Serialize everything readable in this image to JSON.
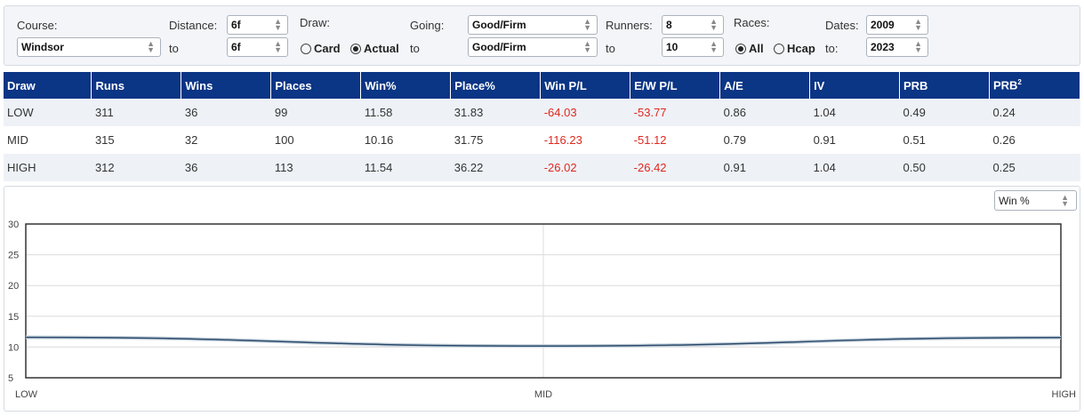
{
  "filters": {
    "course_label": "Course:",
    "course_value": "Windsor",
    "distance_label": "Distance:",
    "distance_from": "6f",
    "to_label": "to",
    "distance_to": "6f",
    "draw_label": "Draw:",
    "draw_card": "Card",
    "draw_actual": "Actual",
    "going_label": "Going:",
    "going_from": "Good/Firm",
    "going_to": "Good/Firm",
    "runners_label": "Runners:",
    "runners_from": "8",
    "runners_to": "10",
    "races_label": "Races:",
    "races_all": "All",
    "races_hcap": "Hcap",
    "dates_label": "Dates:",
    "dates_from": "2009",
    "dates_to_label": "to:",
    "dates_to": "2023"
  },
  "table": {
    "headers": [
      "Draw",
      "Runs",
      "Wins",
      "Places",
      "Win%",
      "Place%",
      "Win P/L",
      "E/W P/L",
      "A/E",
      "IV",
      "PRB",
      "PRB"
    ],
    "prb2_sup": "2",
    "rows": [
      [
        "LOW",
        "311",
        "36",
        "99",
        "11.58",
        "31.83",
        "-64.03",
        "-53.77",
        "0.86",
        "1.04",
        "0.49",
        "0.24"
      ],
      [
        "MID",
        "315",
        "32",
        "100",
        "10.16",
        "31.75",
        "-116.23",
        "-51.12",
        "0.79",
        "0.91",
        "0.51",
        "0.26"
      ],
      [
        "HIGH",
        "312",
        "36",
        "113",
        "11.54",
        "36.22",
        "-26.02",
        "-26.42",
        "0.91",
        "1.04",
        "0.50",
        "0.25"
      ]
    ]
  },
  "metric_select": "Win %",
  "colors": {
    "header_bg": "#0b3585",
    "negative": "#e0281e",
    "line": "#2b4a6b"
  },
  "chart_data": {
    "type": "line",
    "categories": [
      "LOW",
      "MID",
      "HIGH"
    ],
    "series": [
      {
        "values": [
          11.58,
          10.16,
          11.54
        ]
      }
    ],
    "ylim": [
      5,
      30
    ],
    "yticks": [
      "5",
      "10",
      "15",
      "20",
      "25",
      "30"
    ],
    "grid": true
  }
}
